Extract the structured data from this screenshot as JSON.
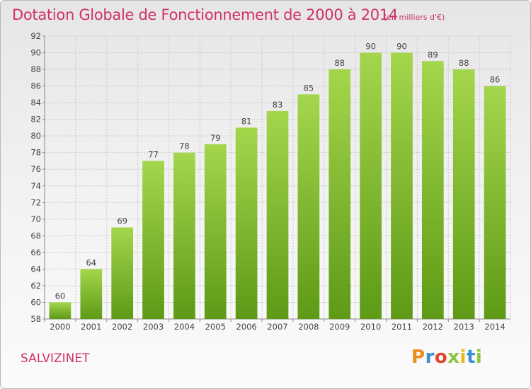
{
  "header": {
    "title": "Dotation Globale de Fonctionnement de 2000 à 2014",
    "unit": "(en milliers d'€)"
  },
  "footer": {
    "commune": "SALVIZINET",
    "logo_text": [
      "P",
      "r",
      "o",
      "x",
      "i",
      "t",
      "i"
    ]
  },
  "colors": {
    "title": "#d0306a",
    "bar_light": "#a4d64c",
    "bar_dark": "#5e9a16",
    "grid": "#c8c8c8"
  },
  "chart_data": {
    "type": "bar",
    "title": "Dotation Globale de Fonctionnement de 2000 à 2014",
    "subtitle": "(en milliers d'€)",
    "categories": [
      "2000",
      "2001",
      "2002",
      "2003",
      "2004",
      "2005",
      "2006",
      "2007",
      "2008",
      "2009",
      "2010",
      "2011",
      "2012",
      "2013",
      "2014"
    ],
    "values": [
      60,
      64,
      69,
      77,
      78,
      79,
      81,
      83,
      85,
      88,
      90,
      90,
      89,
      88,
      86
    ],
    "ylim": [
      58,
      92
    ],
    "yticks": [
      58,
      60,
      62,
      64,
      66,
      68,
      70,
      72,
      74,
      76,
      78,
      80,
      82,
      84,
      86,
      88,
      90,
      92
    ],
    "grid": true,
    "data_labels": true
  }
}
